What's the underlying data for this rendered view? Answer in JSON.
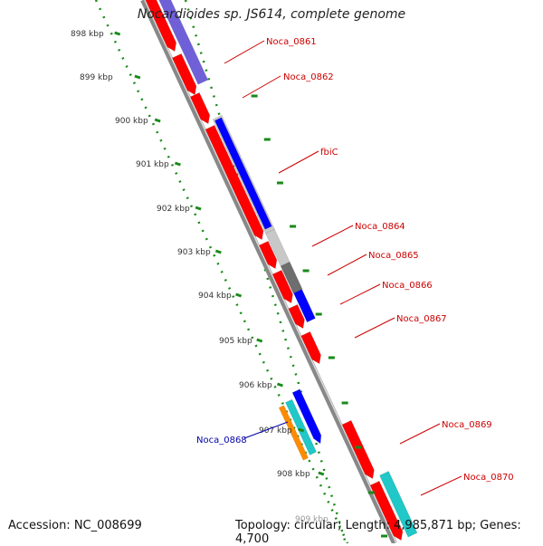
{
  "title": "Nocardioides sp. JS614, complete genome",
  "footer": {
    "accession": "Accession: NC_008699",
    "summary": "Topology: circular; Length: 4,985,871 bp; Genes: 4,700"
  },
  "ruler": {
    "ticks": [
      "898 kbp",
      "899 kbp",
      "900 kbp",
      "901 kbp",
      "902 kbp",
      "903 kbp",
      "904 kbp",
      "905 kbp",
      "906 kbp",
      "907 kbp",
      "908 kbp"
    ],
    "partial_tick": "909 kbp"
  },
  "colors": {
    "forward_cds": "#ff0000",
    "backbone": "#999999",
    "label_red": "#cc0000",
    "label_blue": "#0000aa",
    "tick_green": "#1a8a1a",
    "blue": "#0000ff",
    "cyan": "#20c8c8",
    "orange": "#ff8c00",
    "purple": "#7060d8",
    "gray_light": "#c8c8c8",
    "gray_dark": "#6e6e6e"
  },
  "labels": [
    {
      "text": "Noca_0861",
      "color": "red"
    },
    {
      "text": "Noca_0862",
      "color": "red"
    },
    {
      "text": "fbiC",
      "color": "red"
    },
    {
      "text": "Noca_0864",
      "color": "red"
    },
    {
      "text": "Noca_0865",
      "color": "red"
    },
    {
      "text": "Noca_0866",
      "color": "red"
    },
    {
      "text": "Noca_0867",
      "color": "red"
    },
    {
      "text": "Noca_0868",
      "color": "blue"
    },
    {
      "text": "Noca_0869",
      "color": "red"
    },
    {
      "text": "Noca_0870",
      "color": "red"
    }
  ]
}
